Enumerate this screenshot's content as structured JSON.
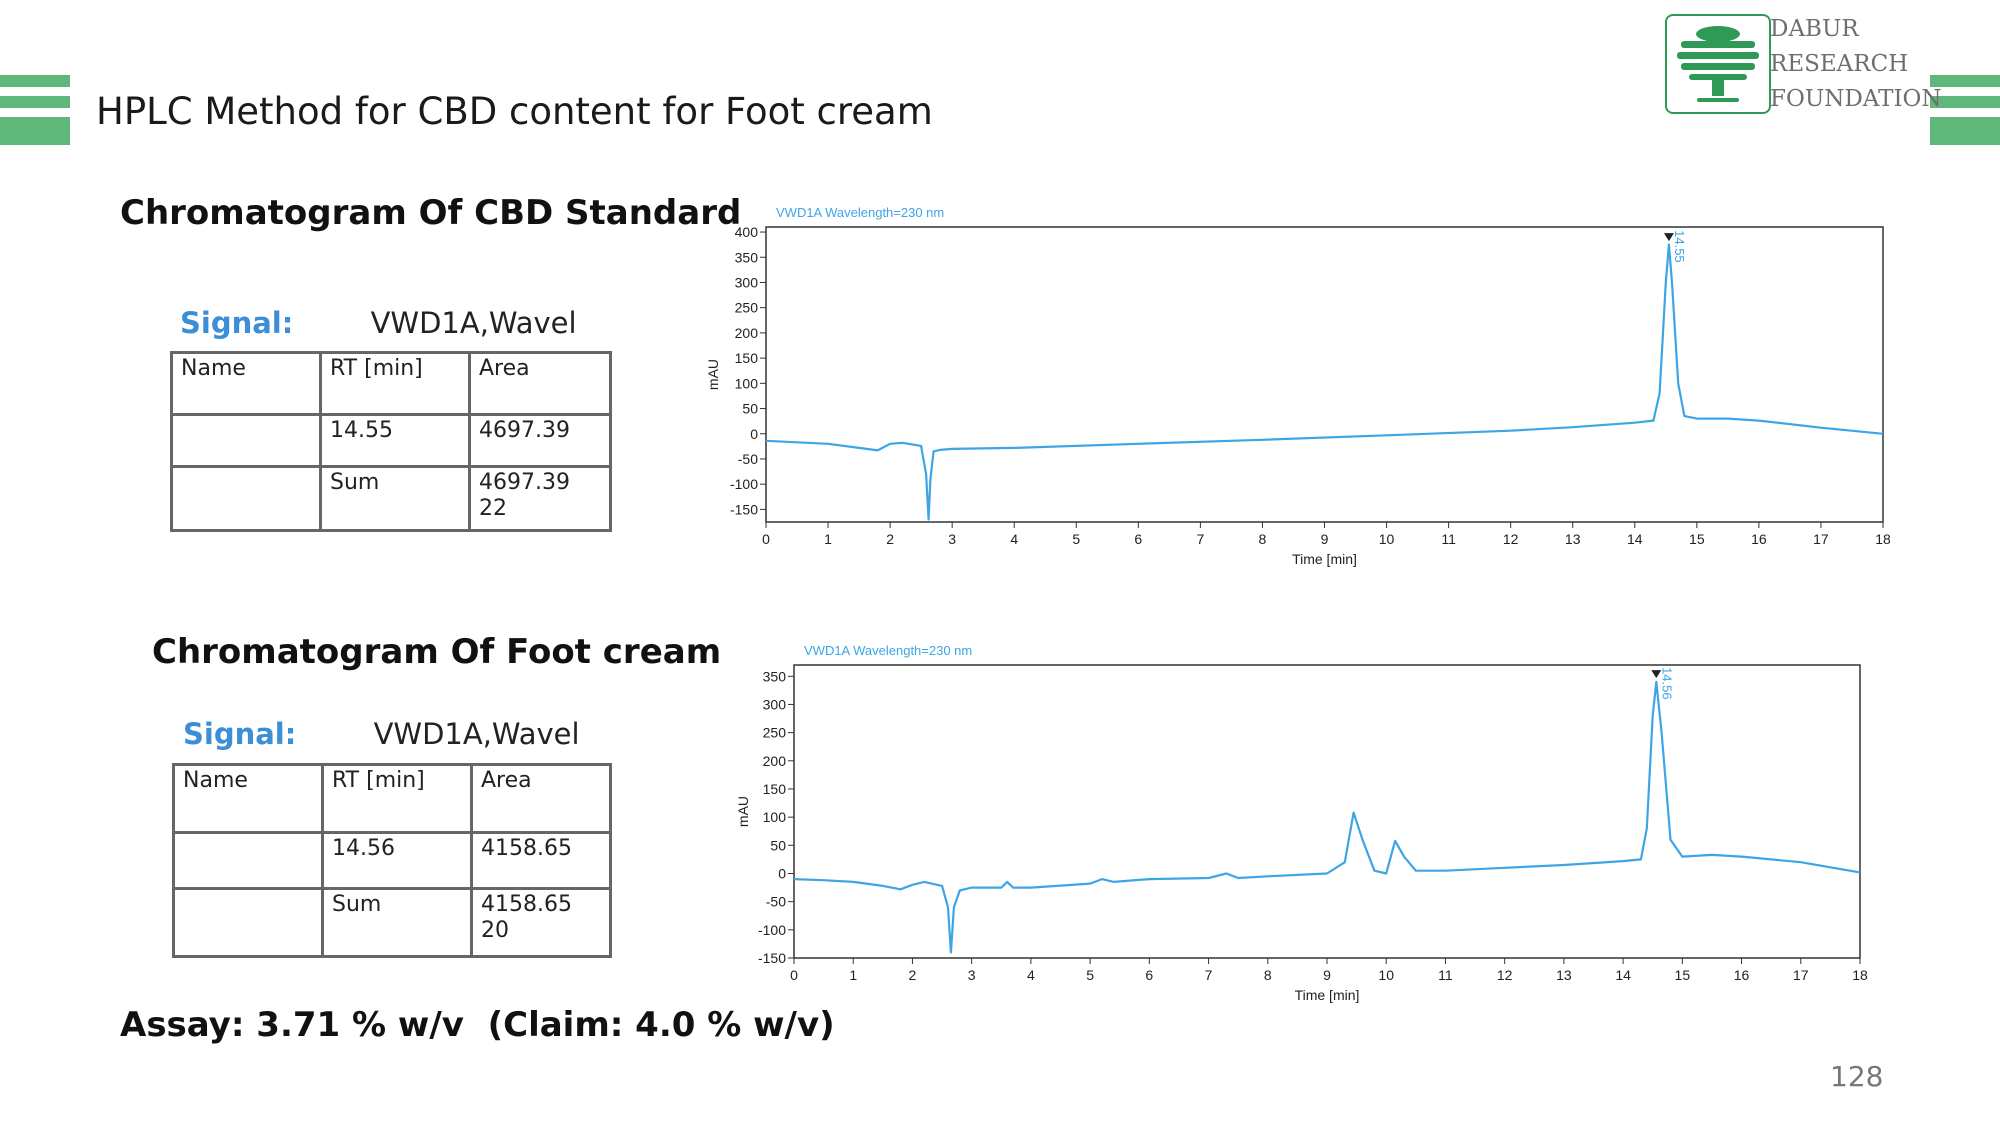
{
  "slide": {
    "title": "HPLC Method for CBD content for Foot cream",
    "page_number": "128",
    "assay": "Assay: 3.71 % w/v  (Claim: 4.0 % w/v)",
    "accent_color": "#5fb87a"
  },
  "logo": {
    "line1": "DABUR",
    "line2": "RESEARCH",
    "line3": "FOUNDATION",
    "icon": "tree-icon",
    "color": "#2e9a55"
  },
  "standard": {
    "heading": "Chromatogram Of CBD Standard",
    "signal_label": "Signal:",
    "signal_value": "VWD1A,Wavel",
    "table": {
      "headers": [
        "Name",
        "RT [min]",
        "Area"
      ],
      "rows": [
        [
          "",
          "14.55",
          "4697.39"
        ],
        [
          "",
          "Sum",
          "4697.39 22"
        ]
      ]
    }
  },
  "sample": {
    "heading": "Chromatogram Of Foot cream",
    "signal_label": "Signal:",
    "signal_value": "VWD1A,Wavel",
    "table": {
      "headers": [
        "Name",
        "RT [min]",
        "Area"
      ],
      "rows": [
        [
          "",
          "14.56",
          "4158.65"
        ],
        [
          "",
          "Sum",
          "4158.65 20"
        ]
      ]
    }
  },
  "chart_data": [
    {
      "type": "line",
      "title": "VWD1A Wavelength=230 nm",
      "xlabel": "Time [min]",
      "ylabel": "mAU",
      "xlim": [
        0,
        18
      ],
      "ylim": [
        -175,
        410
      ],
      "xticks": [
        0,
        1,
        2,
        3,
        4,
        5,
        6,
        7,
        8,
        9,
        10,
        11,
        12,
        13,
        14,
        15,
        16,
        17,
        18
      ],
      "yticks": [
        -150,
        -100,
        -50,
        0,
        50,
        100,
        150,
        200,
        250,
        300,
        350,
        400
      ],
      "grid": false,
      "line_color": "#3da5e6",
      "peak_label": "14.55",
      "peak_label_x": 14.55,
      "peak_label_y": 380,
      "series": [
        {
          "x": [
            0,
            0.5,
            1.0,
            1.5,
            1.8,
            2.0,
            2.2,
            2.5,
            2.58,
            2.62,
            2.65,
            2.7,
            2.8,
            3.0,
            4.0,
            6.0,
            8.0,
            10.0,
            12.0,
            13.0,
            14.0,
            14.3,
            14.4,
            14.5,
            14.55,
            14.6,
            14.7,
            14.8,
            15.0,
            15.5,
            16.0,
            17.0,
            18.0
          ],
          "y": [
            -14,
            -17,
            -20,
            -28,
            -33,
            -20,
            -18,
            -24,
            -80,
            -170,
            -90,
            -35,
            -32,
            -30,
            -28,
            -20,
            -12,
            -3,
            6,
            13,
            22,
            26,
            80,
            300,
            375,
            300,
            100,
            35,
            30,
            30,
            26,
            12,
            0
          ]
        }
      ]
    },
    {
      "type": "line",
      "title": "VWD1A Wavelength=230 nm",
      "xlabel": "Time [min]",
      "ylabel": "mAU",
      "xlim": [
        0,
        18
      ],
      "ylim": [
        -150,
        370
      ],
      "xticks": [
        0,
        1,
        2,
        3,
        4,
        5,
        6,
        7,
        8,
        9,
        10,
        11,
        12,
        13,
        14,
        15,
        16,
        17,
        18
      ],
      "yticks": [
        -150,
        -100,
        -50,
        0,
        50,
        100,
        150,
        200,
        250,
        300,
        350
      ],
      "grid": false,
      "line_color": "#3da5e6",
      "peak_label": "14.56",
      "peak_label_x": 14.56,
      "peak_label_y": 345,
      "series": [
        {
          "x": [
            0,
            0.5,
            1.0,
            1.5,
            1.8,
            2.0,
            2.2,
            2.5,
            2.6,
            2.65,
            2.7,
            2.8,
            3.0,
            3.5,
            3.6,
            3.7,
            4.0,
            5.0,
            5.2,
            5.4,
            6.0,
            7.0,
            7.3,
            7.5,
            8.0,
            9.0,
            9.3,
            9.45,
            9.6,
            9.8,
            10.0,
            10.15,
            10.3,
            10.5,
            11.0,
            12.0,
            13.0,
            14.0,
            14.3,
            14.4,
            14.5,
            14.56,
            14.65,
            14.8,
            15.0,
            15.5,
            16.0,
            17.0,
            18.0
          ],
          "y": [
            -10,
            -12,
            -15,
            -22,
            -28,
            -20,
            -15,
            -22,
            -60,
            -140,
            -60,
            -30,
            -25,
            -25,
            -15,
            -25,
            -25,
            -18,
            -10,
            -15,
            -10,
            -8,
            0,
            -8,
            -5,
            0,
            20,
            108,
            60,
            5,
            0,
            58,
            30,
            5,
            5,
            10,
            15,
            22,
            25,
            80,
            280,
            340,
            250,
            60,
            30,
            33,
            30,
            20,
            2
          ]
        }
      ]
    }
  ]
}
